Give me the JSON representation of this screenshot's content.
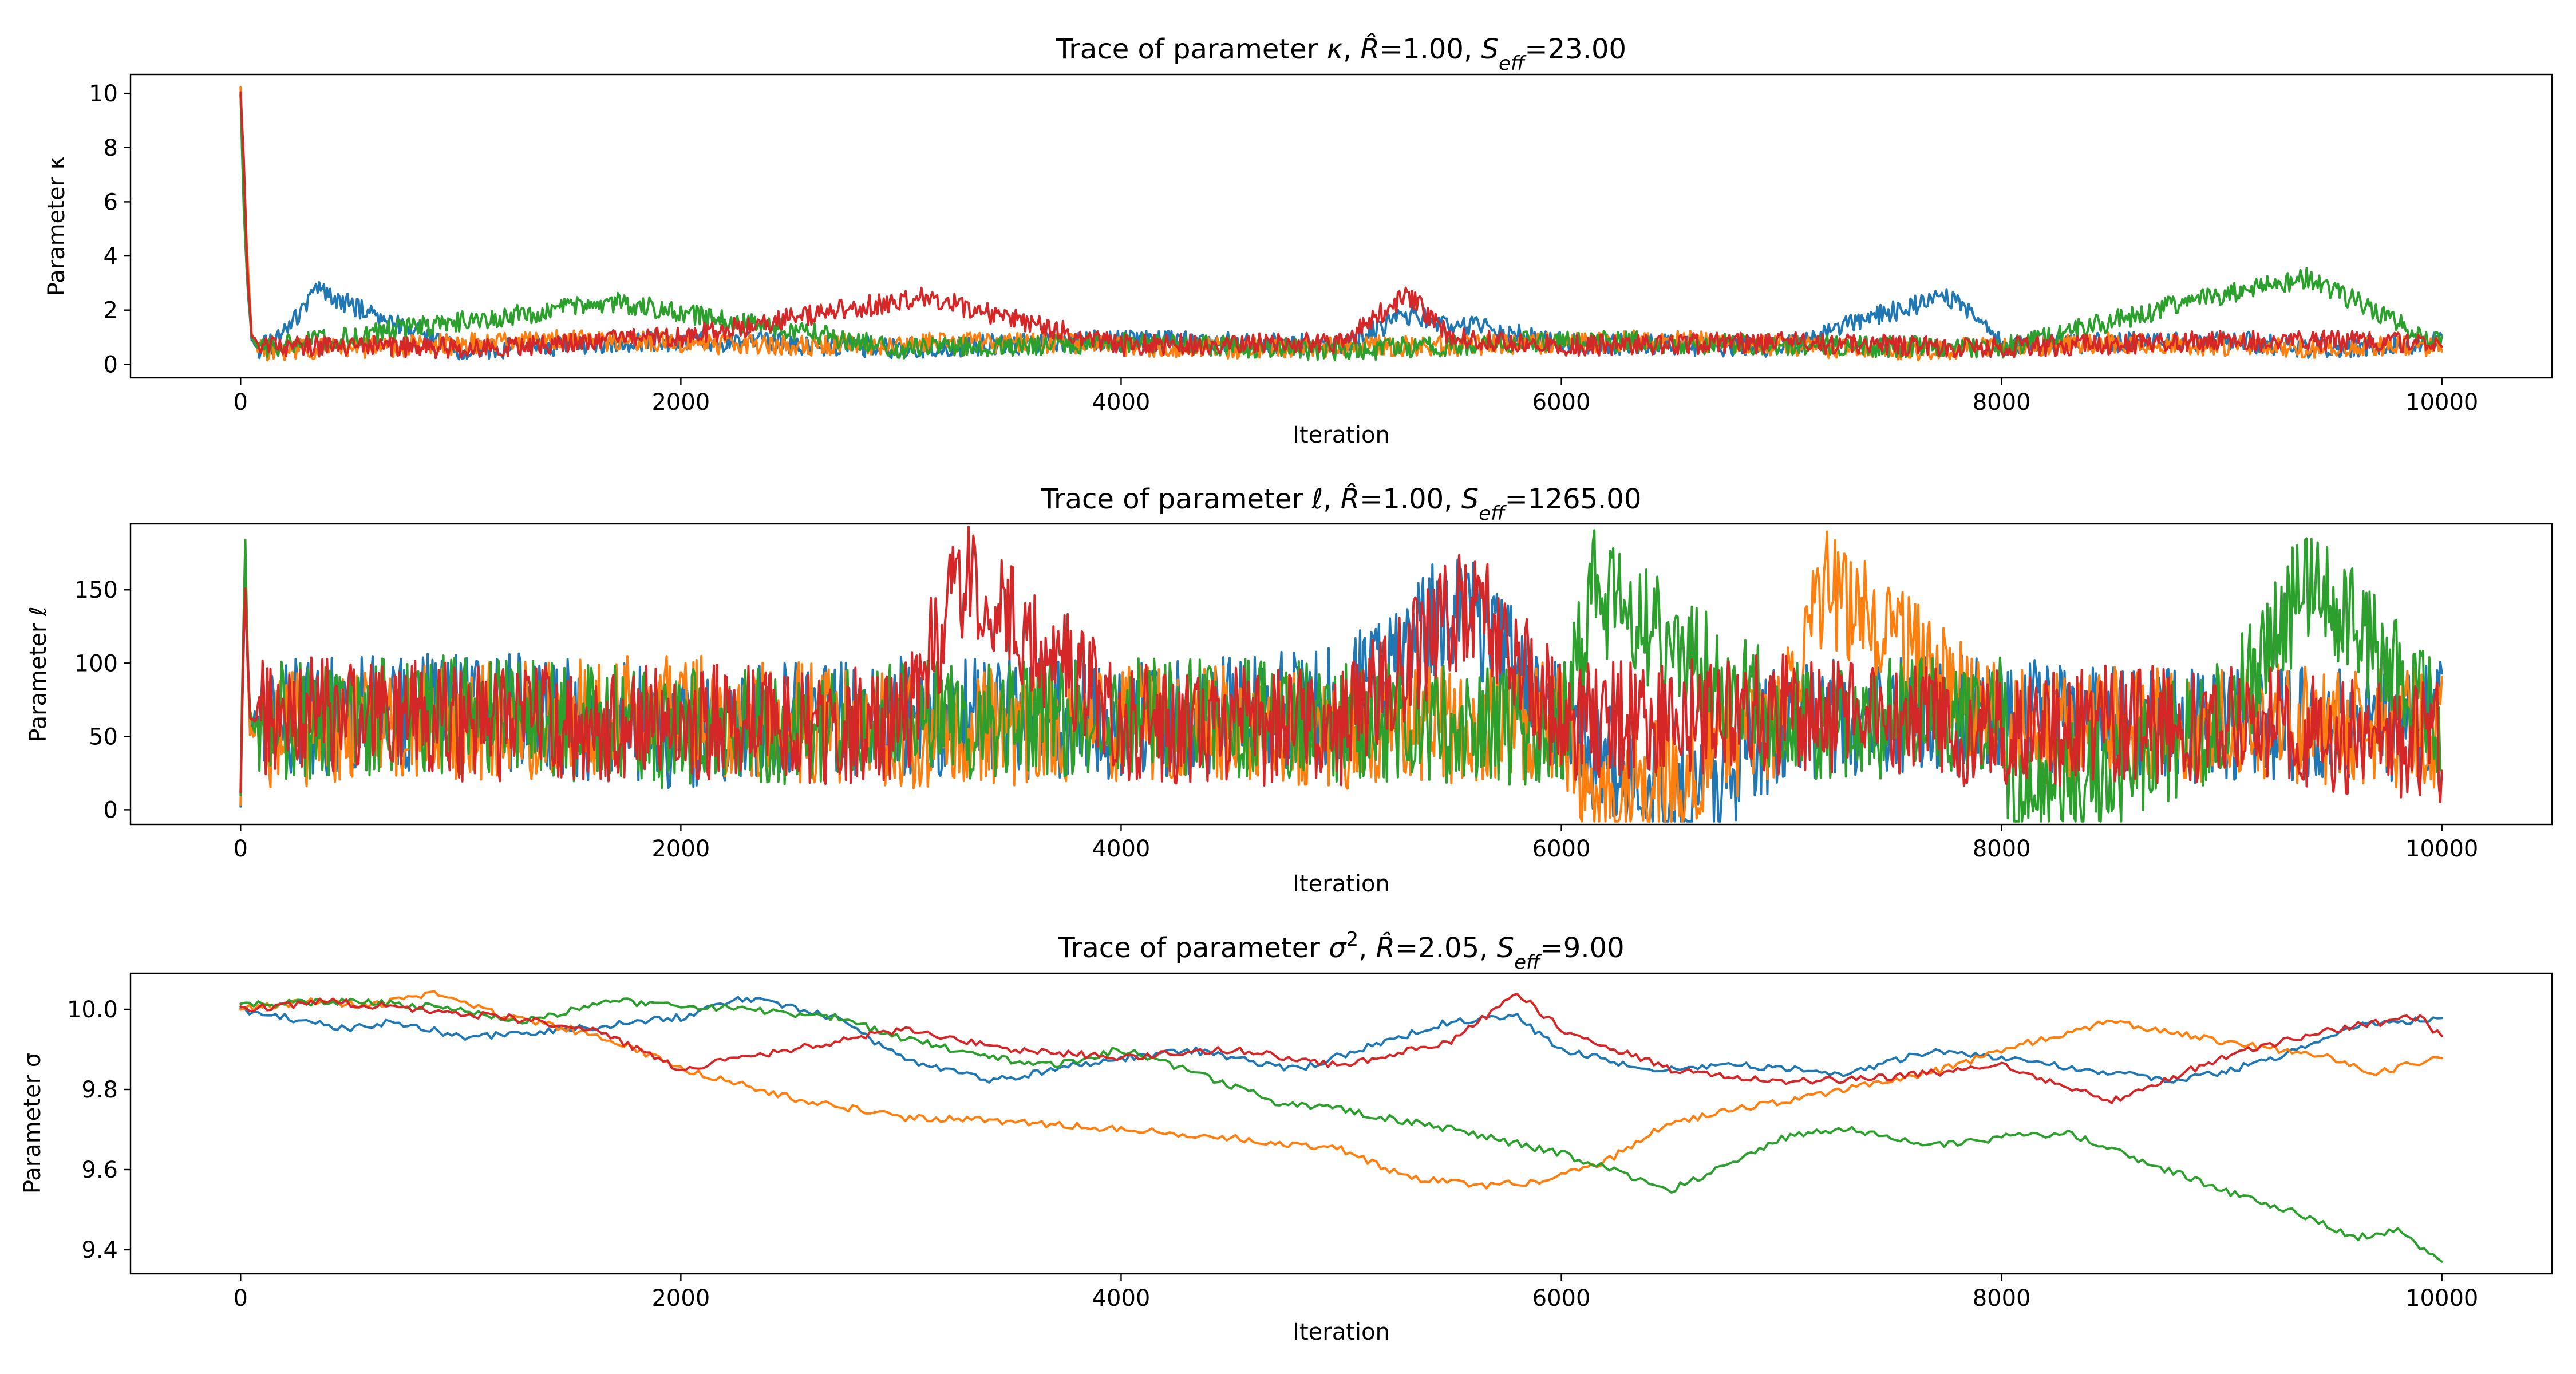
{
  "colors": {
    "series": [
      "#1f77b4",
      "#ff7f0e",
      "#2ca02c",
      "#d62728"
    ]
  },
  "chart_data": [
    {
      "type": "line",
      "title": "Trace of parameter κ, R̂=1.00, S_eff=23.00",
      "title_parts": {
        "prefix": "Trace of parameter ",
        "param": "κ",
        "rhat_symbol": "R̂",
        "rhat": "=1.00, ",
        "seff_S": "S",
        "seff_sub": "eff",
        "seff": "=23.00"
      },
      "xlabel": "Iteration",
      "ylabel": "Parameter κ",
      "xlim": [
        -500,
        10500
      ],
      "ylim": [
        -0.5,
        10.7
      ],
      "xticks": [
        0,
        2000,
        4000,
        6000,
        8000,
        10000
      ],
      "yticks": [
        0,
        2,
        4,
        6,
        8,
        10
      ],
      "grid": false,
      "series": [
        {
          "x": [
            0,
            15,
            30,
            50,
            80,
            150,
            350,
            1000,
            2000,
            3000,
            4000,
            5000,
            5300,
            6000,
            7000,
            7750,
            8000,
            9000,
            9400,
            10000
          ],
          "values": [
            10.0,
            6.0,
            3.0,
            0.9,
            0.6,
            0.8,
            2.7,
            0.5,
            0.9,
            0.6,
            0.9,
            0.7,
            1.8,
            0.8,
            0.6,
            2.6,
            0.7,
            0.9,
            0.6,
            0.8
          ]
        },
        {
          "x": [
            0,
            15,
            30,
            50,
            80,
            500,
            1500,
            2500,
            3500,
            4500,
            5500,
            6500,
            7500,
            8500,
            9500,
            10000
          ],
          "values": [
            10.2,
            7.2,
            4.0,
            1.2,
            0.5,
            0.6,
            0.9,
            0.7,
            0.8,
            0.6,
            0.7,
            0.9,
            0.5,
            0.8,
            0.6,
            0.7
          ]
        },
        {
          "x": [
            0,
            15,
            30,
            50,
            80,
            1700,
            3000,
            4000,
            5000,
            6000,
            7000,
            8000,
            8800,
            9400,
            10000
          ],
          "values": [
            9.9,
            5.5,
            3.2,
            1.0,
            0.6,
            2.3,
            0.6,
            0.8,
            0.5,
            0.9,
            0.7,
            0.6,
            2.2,
            3.2,
            0.7
          ]
        },
        {
          "x": [
            0,
            15,
            30,
            50,
            80,
            1000,
            2000,
            3100,
            4000,
            5000,
            5300,
            5500,
            6000,
            7000,
            8000,
            9000,
            10000
          ],
          "values": [
            10.1,
            7.4,
            3.5,
            1.1,
            0.7,
            0.6,
            1.0,
            2.5,
            0.7,
            0.8,
            2.6,
            1.0,
            0.7,
            0.8,
            0.6,
            0.9,
            0.8
          ]
        }
      ]
    },
    {
      "type": "line",
      "title": "Trace of parameter ℓ, R̂=1.00, S_eff=1265.00",
      "title_parts": {
        "prefix": "Trace of parameter ",
        "param": "ℓ",
        "rhat_symbol": "R̂",
        "rhat": "=1.00, ",
        "seff_S": "S",
        "seff_sub": "eff",
        "seff": "=1265.00"
      },
      "xlabel": "Iteration",
      "ylabel": "Parameter ℓ",
      "xlim": [
        -500,
        10500
      ],
      "ylim": [
        -10,
        195
      ],
      "xticks": [
        0,
        2000,
        4000,
        6000,
        8000,
        10000
      ],
      "yticks": [
        0,
        50,
        100,
        150
      ],
      "grid": false,
      "series": [
        {
          "x": [
            0,
            20,
            40,
            1000,
            2000,
            3000,
            4000,
            5000,
            5550,
            6000,
            6550,
            7000,
            8000,
            9000,
            10000
          ],
          "values": [
            10,
            160,
            60,
            70,
            55,
            65,
            60,
            70,
            145,
            55,
            2,
            60,
            65,
            55,
            60
          ]
        },
        {
          "x": [
            0,
            20,
            40,
            1000,
            2000,
            3000,
            4000,
            5000,
            6000,
            6150,
            7000,
            7200,
            8000,
            9000,
            10000
          ],
          "values": [
            10,
            175,
            55,
            60,
            65,
            55,
            60,
            55,
            60,
            2,
            60,
            150,
            55,
            60,
            55
          ]
        },
        {
          "x": [
            0,
            20,
            40,
            1000,
            2000,
            3000,
            4000,
            5000,
            6000,
            6150,
            7000,
            8000,
            8050,
            9000,
            9400,
            10000
          ],
          "values": [
            10,
            190,
            60,
            65,
            55,
            60,
            65,
            60,
            55,
            150,
            60,
            65,
            2,
            60,
            158,
            55
          ]
        },
        {
          "x": [
            0,
            20,
            40,
            1000,
            2000,
            3000,
            3300,
            4000,
            5000,
            5600,
            6000,
            7000,
            8000,
            9000,
            10000
          ],
          "values": [
            10,
            165,
            65,
            60,
            60,
            55,
            162,
            60,
            55,
            145,
            60,
            65,
            55,
            60,
            45
          ]
        }
      ]
    },
    {
      "type": "line",
      "title": "Trace of parameter σ², R̂=2.05, S_eff=9.00",
      "title_parts": {
        "prefix": "Trace of parameter ",
        "param": "σ",
        "param_sup": "2",
        "rhat_symbol": "R̂",
        "rhat": "=2.05, ",
        "seff_S": "S",
        "seff_sub": "eff",
        "seff": "=9.00"
      },
      "xlabel": "Iteration",
      "ylabel": "Parameter σ",
      "xlim": [
        -500,
        10500
      ],
      "ylim": [
        9.34,
        10.09
      ],
      "xticks": [
        0,
        2000,
        4000,
        6000,
        8000,
        10000
      ],
      "yticks": [
        9.4,
        9.6,
        9.8,
        10.0
      ],
      "tick_format": "1",
      "grid": false,
      "series": [
        {
          "x": [
            0,
            200,
            500,
            700,
            1000,
            1500,
            2000,
            2300,
            2700,
            3000,
            3400,
            3800,
            4300,
            4800,
            5200,
            5500,
            5800,
            6000,
            6400,
            6800,
            7300,
            7700,
            8000,
            8400,
            8800,
            9200,
            9600,
            10000
          ],
          "values": [
            10.0,
            9.98,
            9.95,
            9.97,
            9.93,
            9.95,
            9.98,
            10.03,
            9.98,
            9.88,
            9.82,
            9.86,
            9.9,
            9.85,
            9.92,
            9.97,
            9.98,
            9.9,
            9.85,
            9.86,
            9.84,
            9.9,
            9.88,
            9.85,
            9.82,
            9.87,
            9.96,
            9.98
          ]
        },
        {
          "x": [
            0,
            300,
            600,
            900,
            1200,
            1500,
            1800,
            2000,
            2500,
            3000,
            3500,
            4000,
            4500,
            5000,
            5300,
            5600,
            5900,
            6200,
            6500,
            7000,
            7500,
            7800,
            8000,
            8500,
            9000,
            9500,
            9700,
            10000
          ],
          "values": [
            10.0,
            10.02,
            10.01,
            10.04,
            9.98,
            9.95,
            9.9,
            9.85,
            9.78,
            9.73,
            9.72,
            9.7,
            9.68,
            9.65,
            9.58,
            9.56,
            9.57,
            9.62,
            9.72,
            9.77,
            9.82,
            9.86,
            9.9,
            9.97,
            9.92,
            9.88,
            9.84,
            9.88
          ]
        },
        {
          "x": [
            0,
            500,
            1000,
            1300,
            1700,
            2300,
            2700,
            3000,
            3400,
            3700,
            4000,
            4300,
            4700,
            5000,
            5500,
            6000,
            6500,
            6800,
            7000,
            7300,
            7700,
            8000,
            8300,
            8600,
            9000,
            9300,
            9600,
            9800,
            10000
          ],
          "values": [
            10.01,
            10.02,
            10.0,
            9.97,
            10.02,
            10.0,
            9.98,
            9.93,
            9.88,
            9.86,
            9.9,
            9.85,
            9.77,
            9.75,
            9.7,
            9.64,
            9.55,
            9.62,
            9.68,
            9.7,
            9.66,
            9.68,
            9.69,
            9.63,
            9.55,
            9.5,
            9.43,
            9.45,
            9.37
          ]
        },
        {
          "x": [
            0,
            400,
            800,
            1200,
            1600,
            2000,
            2500,
            3000,
            3500,
            4000,
            4500,
            5000,
            5500,
            5800,
            6000,
            6500,
            7000,
            7500,
            8000,
            8500,
            9000,
            9500,
            9900,
            10000
          ],
          "values": [
            10.0,
            10.02,
            10.0,
            9.98,
            9.95,
            9.85,
            9.9,
            9.95,
            9.9,
            9.88,
            9.9,
            9.86,
            9.92,
            10.04,
            9.95,
            9.85,
            9.82,
            9.83,
            9.86,
            9.77,
            9.88,
            9.95,
            9.98,
            9.93
          ]
        }
      ]
    }
  ]
}
